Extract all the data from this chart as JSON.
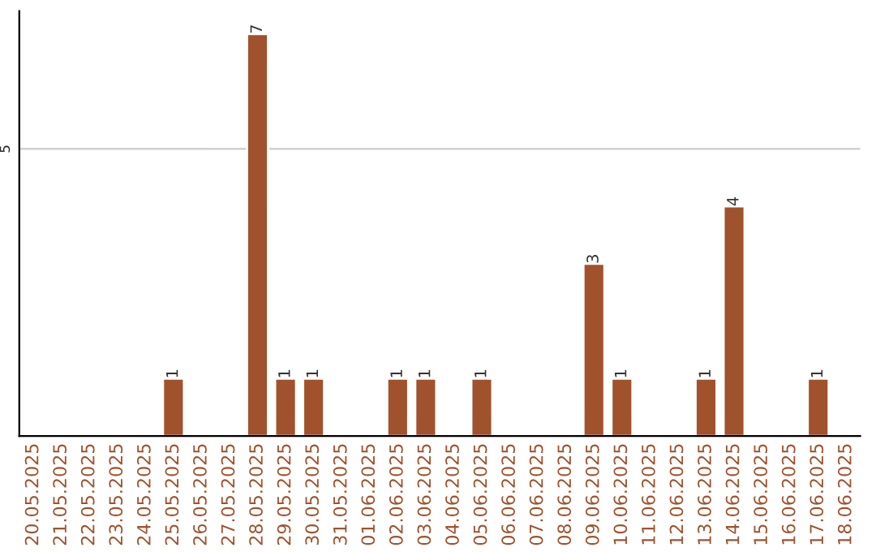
{
  "chart_data": {
    "type": "bar",
    "categories": [
      "20.05.2025",
      "21.05.2025",
      "22.05.2025",
      "23.05.2025",
      "24.05.2025",
      "25.05.2025",
      "26.05.2025",
      "27.05.2025",
      "28.05.2025",
      "29.05.2025",
      "30.05.2025",
      "31.05.2025",
      "01.06.2025",
      "02.06.2025",
      "03.06.2025",
      "04.06.2025",
      "05.06.2025",
      "06.06.2025",
      "07.06.2025",
      "08.06.2025",
      "09.06.2025",
      "10.06.2025",
      "11.06.2025",
      "12.06.2025",
      "13.06.2025",
      "14.06.2025",
      "15.06.2025",
      "16.06.2025",
      "17.06.2025",
      "18.06.2025"
    ],
    "values": [
      null,
      null,
      null,
      null,
      null,
      1,
      null,
      null,
      7,
      1,
      1,
      null,
      null,
      1,
      1,
      null,
      1,
      null,
      null,
      null,
      3,
      1,
      null,
      null,
      1,
      4,
      null,
      null,
      1,
      null
    ],
    "value_labels": [
      null,
      null,
      null,
      null,
      null,
      "1",
      null,
      null,
      "7",
      "1",
      "1",
      null,
      null,
      "1",
      "1",
      null,
      "1",
      null,
      null,
      null,
      "3",
      "1",
      null,
      null,
      "1",
      "4",
      null,
      null,
      "1",
      null
    ],
    "color": "#a0522d",
    "ylim": [
      0,
      7.4
    ],
    "yticks": [
      5
    ],
    "grid": "y"
  }
}
